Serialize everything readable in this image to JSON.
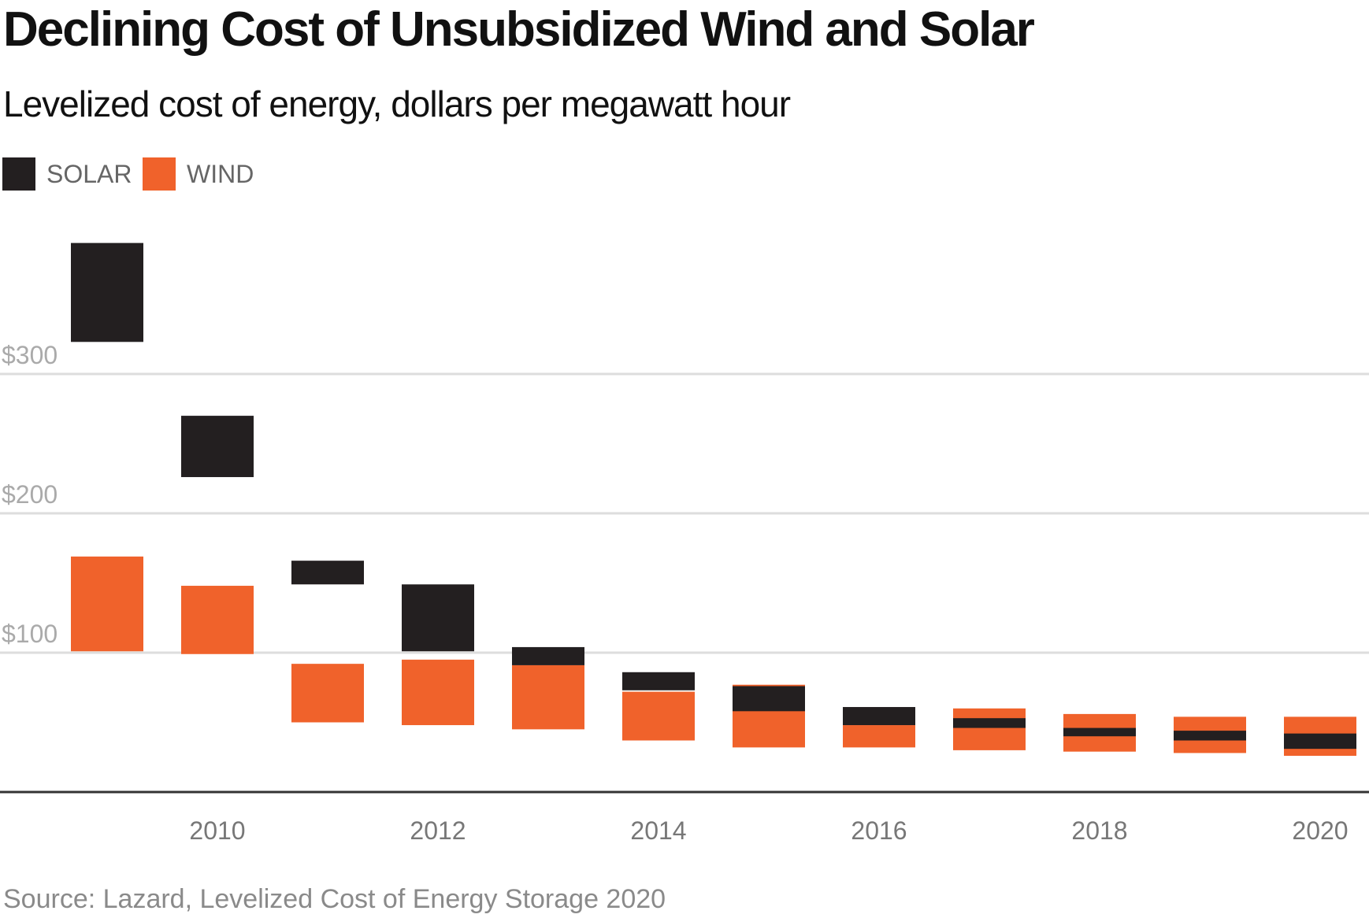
{
  "title": "Declining Cost of Unsubsidized Wind and Solar",
  "subtitle": "Levelized cost of energy, dollars per megawatt hour",
  "source": "Source: Lazard, Levelized Cost of Energy Storage 2020",
  "legend": {
    "solar": {
      "label": "SOLAR",
      "color": "#231f20"
    },
    "wind": {
      "label": "WIND",
      "color": "#f0622b"
    }
  },
  "chart_data": {
    "type": "bar",
    "subtype": "floating-range",
    "title": "Declining Cost of Unsubsidized Wind and Solar",
    "subtitle": "Levelized cost of energy, dollars per megawatt hour",
    "ylabel": "",
    "xlabel": "",
    "x": [
      2009,
      2010,
      2011,
      2012,
      2013,
      2014,
      2015,
      2016,
      2017,
      2018,
      2019,
      2020
    ],
    "xticks": [
      "2010",
      "2012",
      "2014",
      "2016",
      "2018",
      "2020"
    ],
    "yticks": [
      {
        "value": 100,
        "label": "$100"
      },
      {
        "value": 200,
        "label": "$200"
      },
      {
        "value": 300,
        "label": "$300"
      }
    ],
    "ylim": [
      0,
      400
    ],
    "grid": true,
    "legend_position": "top-left",
    "series": [
      {
        "name": "SOLAR",
        "color": "#231f20",
        "ranges": [
          [
            323,
            394
          ],
          [
            226,
            270
          ],
          [
            149,
            166
          ],
          [
            101,
            149
          ],
          [
            91,
            104
          ],
          [
            73,
            86
          ],
          [
            58,
            76
          ],
          [
            48,
            61
          ],
          [
            46,
            53
          ],
          [
            40,
            46
          ],
          [
            37,
            44
          ],
          [
            31,
            42
          ]
        ]
      },
      {
        "name": "WIND",
        "color": "#f0622b",
        "ranges": [
          [
            101,
            169
          ],
          [
            99,
            148
          ],
          [
            50,
            92
          ],
          [
            48,
            95
          ],
          [
            45,
            91
          ],
          [
            37,
            72
          ],
          [
            32,
            77
          ],
          [
            32,
            48
          ],
          [
            30,
            60
          ],
          [
            29,
            56
          ],
          [
            28,
            54
          ],
          [
            26,
            54
          ]
        ]
      }
    ],
    "draw_order": [
      "WIND",
      "SOLAR"
    ]
  }
}
